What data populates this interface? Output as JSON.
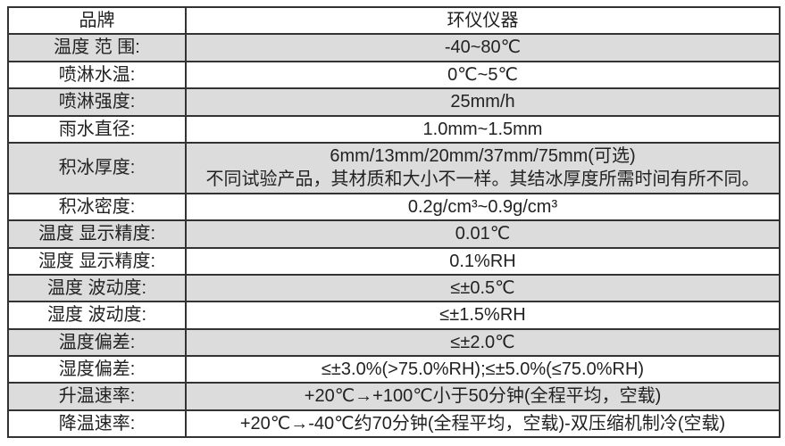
{
  "page": {
    "background_color": "#ffffff",
    "text_color": "#222222",
    "border_color": "#333333",
    "shaded_row_color": "#dcdcdc"
  },
  "table": {
    "columns": [
      "品牌",
      "环仪仪器"
    ],
    "rows": [
      {
        "label": "品牌",
        "value": "环仪仪器",
        "shaded": false
      },
      {
        "label": "温度 范 围:",
        "value": "-40~80℃",
        "shaded": true
      },
      {
        "label": "喷淋水温:",
        "value": "0℃~5℃",
        "shaded": false
      },
      {
        "label": "喷淋强度:",
        "value": "25mm/h",
        "shaded": true
      },
      {
        "label": "雨水直径:",
        "value": "1.0mm~1.5mm",
        "shaded": false
      },
      {
        "label": "积冰厚度:",
        "value": "6mm/13mm/20mm/37mm/75mm(可选)",
        "value_line2": "不同试验产品，其材质和大小不一样。其结冰厚度所需时间有所不同。",
        "shaded": true
      },
      {
        "label": "积冰密度:",
        "value": "0.2g/cm³~0.9g/cm³",
        "shaded": false
      },
      {
        "label": "温度 显示精度:",
        "value": "0.01℃",
        "shaded": true
      },
      {
        "label": "湿度 显示精度:",
        "value": "0.1%RH",
        "shaded": false
      },
      {
        "label": "温度 波动度:",
        "value": "≤±0.5℃",
        "shaded": true
      },
      {
        "label": "湿度 波动度:",
        "value": "≤±1.5%RH",
        "shaded": false
      },
      {
        "label": "温度偏差:",
        "value": "≤±2.0℃",
        "shaded": true
      },
      {
        "label": "湿度偏差:",
        "value": "≤±3.0%(>75.0%RH);≤±5.0%(≤75.0%RH)",
        "shaded": false
      },
      {
        "label": "升温速率:",
        "value": "+20℃→+100℃小于50分钟(全程平均，空载)",
        "shaded": true
      },
      {
        "label": "降温速率:",
        "value": "+20℃→-40℃约70分钟(全程平均，空载)-双压缩机制冷(空载)",
        "shaded": false
      }
    ]
  }
}
